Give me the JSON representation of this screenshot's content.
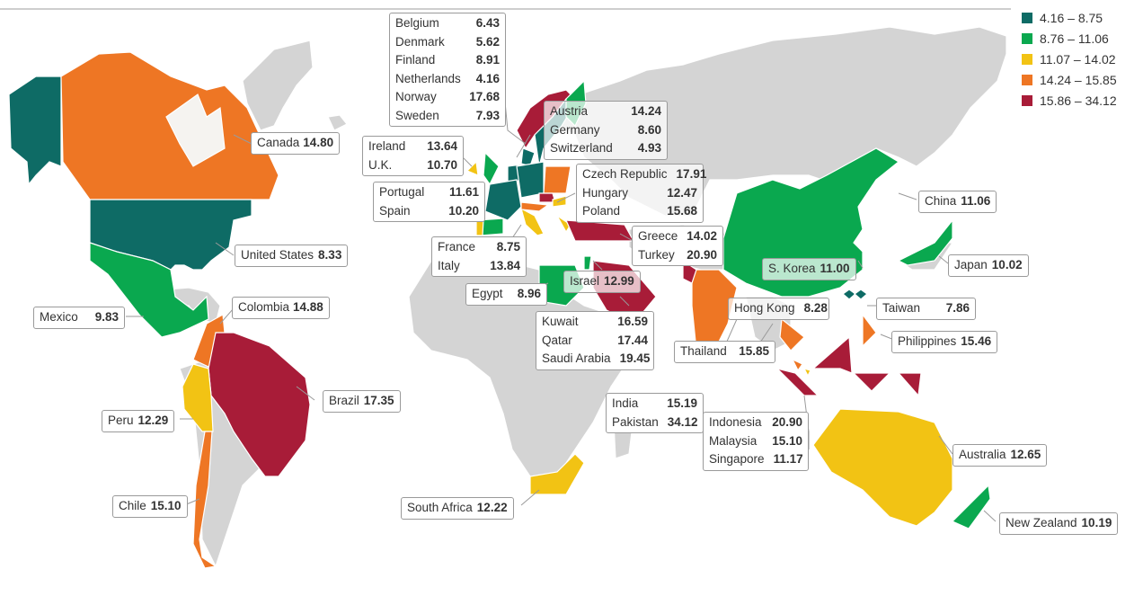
{
  "legend": {
    "bins": [
      {
        "label": "4.16 – 8.75",
        "color": "#0e6b65"
      },
      {
        "label": "8.76 – 11.06",
        "color": "#0aa84f"
      },
      {
        "label": "11.07 – 14.02",
        "color": "#f2c314"
      },
      {
        "label": "14.24 – 15.85",
        "color": "#ee7624"
      },
      {
        "label": "15.86 – 34.12",
        "color": "#a81c38"
      }
    ],
    "no_data_color": "#d4d4d4"
  },
  "labels": [
    {
      "id": "nordics",
      "rows": [
        {
          "name": "Belgium",
          "value": "6.43"
        },
        {
          "name": "Denmark",
          "value": "5.62"
        },
        {
          "name": "Finland",
          "value": "8.91"
        },
        {
          "name": "Netherlands",
          "value": "4.16"
        },
        {
          "name": "Norway",
          "value": "17.68"
        },
        {
          "name": "Sweden",
          "value": "7.93"
        }
      ]
    },
    {
      "id": "central",
      "rows": [
        {
          "name": "Austria",
          "value": "14.24"
        },
        {
          "name": "Germany",
          "value": "8.60"
        },
        {
          "name": "Switzerland",
          "value": "4.93"
        }
      ]
    },
    {
      "id": "uk",
      "rows": [
        {
          "name": "Ireland",
          "value": "13.64"
        },
        {
          "name": "U.K.",
          "value": "10.70"
        }
      ]
    },
    {
      "id": "iberia",
      "rows": [
        {
          "name": "Portugal",
          "value": "11.61"
        },
        {
          "name": "Spain",
          "value": "10.20"
        }
      ]
    },
    {
      "id": "east",
      "rows": [
        {
          "name": "Czech Republic",
          "value": "17.91"
        },
        {
          "name": "Hungary",
          "value": "12.47"
        },
        {
          "name": "Poland",
          "value": "15.68"
        }
      ]
    },
    {
      "id": "frit",
      "rows": [
        {
          "name": "France",
          "value": "8.75"
        },
        {
          "name": "Italy",
          "value": "13.84"
        }
      ]
    },
    {
      "id": "grtr",
      "rows": [
        {
          "name": "Greece",
          "value": "14.02"
        },
        {
          "name": "Turkey",
          "value": "20.90"
        }
      ]
    },
    {
      "id": "canada",
      "rows": [
        {
          "name": "Canada",
          "value": "14.80"
        }
      ]
    },
    {
      "id": "us",
      "rows": [
        {
          "name": "United States",
          "value": "8.33"
        }
      ]
    },
    {
      "id": "mexico",
      "rows": [
        {
          "name": "Mexico",
          "value": "9.83"
        }
      ]
    },
    {
      "id": "colombia",
      "rows": [
        {
          "name": "Colombia",
          "value": "14.88"
        }
      ]
    },
    {
      "id": "brazil",
      "rows": [
        {
          "name": "Brazil",
          "value": "17.35"
        }
      ]
    },
    {
      "id": "peru",
      "rows": [
        {
          "name": "Peru",
          "value": "12.29"
        }
      ]
    },
    {
      "id": "chile",
      "rows": [
        {
          "name": "Chile",
          "value": "15.10"
        }
      ]
    },
    {
      "id": "egypt",
      "rows": [
        {
          "name": "Egypt",
          "value": "8.96"
        }
      ]
    },
    {
      "id": "israel",
      "rows": [
        {
          "name": "Israel",
          "value": "12.99"
        }
      ]
    },
    {
      "id": "gulf",
      "rows": [
        {
          "name": "Kuwait",
          "value": "16.59"
        },
        {
          "name": "Qatar",
          "value": "17.44"
        },
        {
          "name": "Saudi Arabia",
          "value": "19.45"
        }
      ]
    },
    {
      "id": "safrica",
      "rows": [
        {
          "name": "South Africa",
          "value": "12.22"
        }
      ]
    },
    {
      "id": "china",
      "rows": [
        {
          "name": "China",
          "value": "11.06"
        }
      ]
    },
    {
      "id": "japan",
      "rows": [
        {
          "name": "Japan",
          "value": "10.02"
        }
      ]
    },
    {
      "id": "skorea",
      "rows": [
        {
          "name": "S. Korea",
          "value": "11.00"
        }
      ]
    },
    {
      "id": "hk",
      "rows": [
        {
          "name": "Hong Kong",
          "value": "8.28"
        }
      ]
    },
    {
      "id": "taiwan",
      "rows": [
        {
          "name": "Taiwan",
          "value": "7.86"
        }
      ]
    },
    {
      "id": "phil",
      "rows": [
        {
          "name": "Philippines",
          "value": "15.46"
        }
      ]
    },
    {
      "id": "thailand",
      "rows": [
        {
          "name": "Thailand",
          "value": "15.85"
        }
      ]
    },
    {
      "id": "india",
      "rows": [
        {
          "name": "India",
          "value": "15.19"
        },
        {
          "name": "Pakistan",
          "value": "34.12"
        }
      ]
    },
    {
      "id": "sea",
      "rows": [
        {
          "name": "Indonesia",
          "value": "20.90"
        },
        {
          "name": "Malaysia",
          "value": "15.10"
        },
        {
          "name": "Singapore",
          "value": "11.17"
        }
      ]
    },
    {
      "id": "australia",
      "rows": [
        {
          "name": "Australia",
          "value": "12.65"
        }
      ]
    },
    {
      "id": "nz",
      "rows": [
        {
          "name": "New Zealand",
          "value": "10.19"
        }
      ]
    }
  ]
}
